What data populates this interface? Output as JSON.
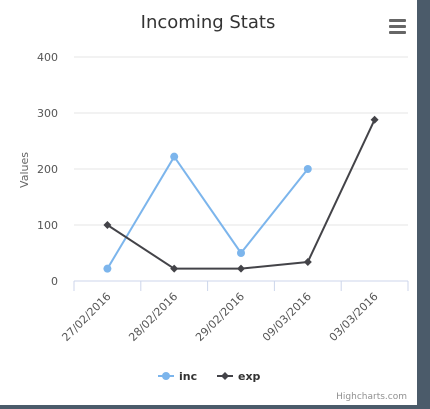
{
  "menu": {
    "icon": "hamburger-menu-icon"
  },
  "credits": "Highcharts.com",
  "chart_data": {
    "type": "line",
    "title": "Incoming Stats",
    "ylabel": "Values",
    "xlabel": "",
    "categories": [
      "27/02/2016",
      "28/02/2016",
      "29/02/2016",
      "09/03/2016",
      "03/03/2016"
    ],
    "y_ticks": [
      0,
      100,
      200,
      300,
      400
    ],
    "ylim": [
      0,
      400
    ],
    "grid": true,
    "legend_position": "bottom-center",
    "series": [
      {
        "name": "inc",
        "color": "#7cb5ec",
        "marker": "circle",
        "values": [
          22,
          222,
          50,
          200,
          null
        ]
      },
      {
        "name": "exp",
        "color": "#434348",
        "marker": "diamond",
        "values": [
          100,
          22,
          22,
          34,
          288
        ]
      }
    ]
  }
}
